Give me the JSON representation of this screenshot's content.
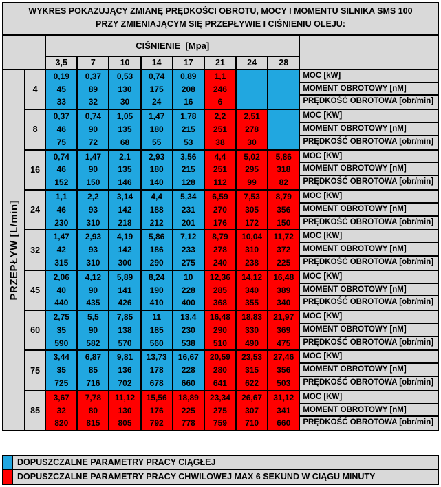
{
  "title": {
    "line1": "WYKRES POKAZUJĄCY ZMIANĘ PRĘDKOŚCI OBROTU, MOCY I MOMENTU SILNIKA SMS 100",
    "line2": "PRZY ZMIENIAJĄCYM SIĘ PRZEPŁYWIE I CIŚNIENIU OLEJU:"
  },
  "chart_data": {
    "type": "table",
    "title": "WYKRES POKAZUJĄCY ZMIANĘ PRĘDKOŚCI OBROTU, MOCY I MOMENTU SILNIKA SMS 100 PRZY ZMIENIAJĄCYM SIĘ PRZEPŁYWIE I CIŚNIENIU OLEJU:",
    "pressure_header": "CIŚNIENIE  [Mpa]",
    "pressure_values": [
      "3,5",
      "7",
      "10",
      "14",
      "17",
      "21",
      "24",
      "28"
    ],
    "flow_axis_label": "PRZEPŁYW [L/min]",
    "groups": [
      {
        "flow": "4",
        "labels": [
          "MOC [kW]",
          "MOMENT OBROTOWY [nM]",
          "PRĘDKOŚĆ OBROTOWA [obr/min]"
        ],
        "power": [
          "0,19",
          "0,37",
          "0,53",
          "0,74",
          "0,89",
          "1,1",
          "",
          ""
        ],
        "torque": [
          "45",
          "89",
          "130",
          "175",
          "208",
          "246",
          "",
          ""
        ],
        "speed": [
          "33",
          "32",
          "30",
          "24",
          "16",
          "6",
          "",
          ""
        ],
        "zones": [
          "c",
          "c",
          "c",
          "c",
          "c",
          "m",
          "c",
          "c"
        ]
      },
      {
        "flow": "8",
        "labels": [
          "MOC [KW]",
          "MOMENT OBROTOWY [nM]",
          "PRĘDKOŚĆ OBROTOWA [obr/min]"
        ],
        "power": [
          "0,37",
          "0,74",
          "1,05",
          "1,47",
          "1,78",
          "2,2",
          "2,51",
          ""
        ],
        "torque": [
          "46",
          "90",
          "135",
          "180",
          "215",
          "251",
          "278",
          ""
        ],
        "speed": [
          "75",
          "72",
          "68",
          "55",
          "53",
          "38",
          "30",
          ""
        ],
        "zones": [
          "c",
          "c",
          "c",
          "c",
          "c",
          "m",
          "m",
          "c"
        ]
      },
      {
        "flow": "16",
        "labels": [
          "MOC [KW]",
          "MOMENT OBROTOWY [nM]",
          "PRĘDKOŚĆ OBROTOWA [obr/min]"
        ],
        "power": [
          "0,74",
          "1,47",
          "2,1",
          "2,93",
          "3,56",
          "4,4",
          "5,02",
          "5,86"
        ],
        "torque": [
          "46",
          "90",
          "135",
          "180",
          "215",
          "251",
          "295",
          "318"
        ],
        "speed": [
          "152",
          "150",
          "146",
          "140",
          "128",
          "112",
          "99",
          "82"
        ],
        "zones": [
          "c",
          "c",
          "c",
          "c",
          "c",
          "m",
          "m",
          "m"
        ]
      },
      {
        "flow": "24",
        "labels": [
          "MOC [KW]",
          "MOMENT OBROTOWY [nM]",
          "PRĘDKOŚĆ OBROTOWA [obr/min]"
        ],
        "power": [
          "1,1",
          "2,2",
          "3,14",
          "4,4",
          "5,34",
          "6,59",
          "7,53",
          "8,79"
        ],
        "torque": [
          "46",
          "93",
          "142",
          "188",
          "231",
          "270",
          "305",
          "356"
        ],
        "speed": [
          "230",
          "310",
          "218",
          "212",
          "201",
          "176",
          "172",
          "150"
        ],
        "zones": [
          "c",
          "c",
          "c",
          "c",
          "c",
          "m",
          "m",
          "m"
        ]
      },
      {
        "flow": "32",
        "labels": [
          "MOC [KW]",
          "MOMENT OBROTOWY [nM]",
          "PRĘDKOŚĆ OBROTOWA [obr/min]"
        ],
        "power": [
          "1,47",
          "2,93",
          "4,19",
          "5,86",
          "7,12",
          "8,79",
          "10,04",
          "11,72"
        ],
        "torque": [
          "42",
          "93",
          "142",
          "186",
          "233",
          "278",
          "310",
          "372"
        ],
        "speed": [
          "315",
          "310",
          "300",
          "290",
          "275",
          "240",
          "238",
          "225"
        ],
        "zones": [
          "c",
          "c",
          "c",
          "c",
          "c",
          "m",
          "m",
          "m"
        ]
      },
      {
        "flow": "45",
        "labels": [
          "MOC [KW]",
          "MOMENT OBROTOWY [nM]",
          "PRĘDKOŚĆ OBROTOWA [obr/min]"
        ],
        "power": [
          "2,06",
          "4,12",
          "5,89",
          "8,24",
          "10",
          "12,36",
          "14,12",
          "16,48"
        ],
        "torque": [
          "40",
          "90",
          "141",
          "190",
          "228",
          "285",
          "340",
          "389"
        ],
        "speed": [
          "440",
          "435",
          "426",
          "410",
          "400",
          "368",
          "355",
          "340"
        ],
        "zones": [
          "c",
          "c",
          "c",
          "c",
          "c",
          "m",
          "m",
          "m"
        ]
      },
      {
        "flow": "60",
        "labels": [
          "MOC [KW]",
          "MOMENT OBROTOWY [nM]",
          "PRĘDKOŚĆ OBROTOWA [obr/min]"
        ],
        "power": [
          "2,75",
          "5,5",
          "7,85",
          "11",
          "13,4",
          "16,48",
          "18,83",
          "21,97"
        ],
        "torque": [
          "35",
          "90",
          "138",
          "185",
          "230",
          "290",
          "330",
          "369"
        ],
        "speed": [
          "590",
          "582",
          "570",
          "560",
          "538",
          "510",
          "490",
          "475"
        ],
        "zones": [
          "c",
          "c",
          "c",
          "c",
          "c",
          "m",
          "m",
          "m"
        ]
      },
      {
        "flow": "75",
        "labels": [
          "MOC [KW]",
          "MOMENT OBROTOWY [nM]",
          "PRĘDKOŚĆ OBROTOWA [obr/min]"
        ],
        "power": [
          "3,44",
          "6,87",
          "9,81",
          "13,73",
          "16,67",
          "20,59",
          "23,53",
          "27,46"
        ],
        "torque": [
          "35",
          "85",
          "136",
          "178",
          "228",
          "280",
          "315",
          "356"
        ],
        "speed": [
          "725",
          "716",
          "702",
          "678",
          "660",
          "641",
          "622",
          "503"
        ],
        "zones": [
          "c",
          "c",
          "c",
          "c",
          "c",
          "m",
          "m",
          "m"
        ]
      },
      {
        "flow": "85",
        "labels": [
          "MOC [KW]",
          "MOMENT OBROTOWY [nM]",
          "PRĘDKOŚĆ OBROTOWA [obr/min]"
        ],
        "power": [
          "3,67",
          "7,78",
          "11,12",
          "15,56",
          "18,89",
          "23,34",
          "26,67",
          "31,12"
        ],
        "torque": [
          "32",
          "80",
          "130",
          "176",
          "225",
          "275",
          "307",
          "341"
        ],
        "speed": [
          "820",
          "815",
          "805",
          "792",
          "778",
          "759",
          "710",
          "660"
        ],
        "zones": [
          "m",
          "m",
          "m",
          "m",
          "m",
          "m",
          "m",
          "m"
        ]
      }
    ],
    "legend": [
      {
        "zone": "c",
        "color": "#21A7E0",
        "label": "DOPUSZCZALNE PARAMETRY PRACY CIĄGŁEJ"
      },
      {
        "zone": "m",
        "color": "#FF0000",
        "label": "DOPUSZCZALNE PARAMETRY PRACY CHWILOWEJ MAX 6 SEKUND W CIĄGU MINUTY"
      }
    ],
    "colors": {
      "continuous_blue": "#21A7E0",
      "momentary_red": "#FF0000",
      "panel_gray": "#D9D9D9",
      "border_black": "#000000"
    }
  }
}
